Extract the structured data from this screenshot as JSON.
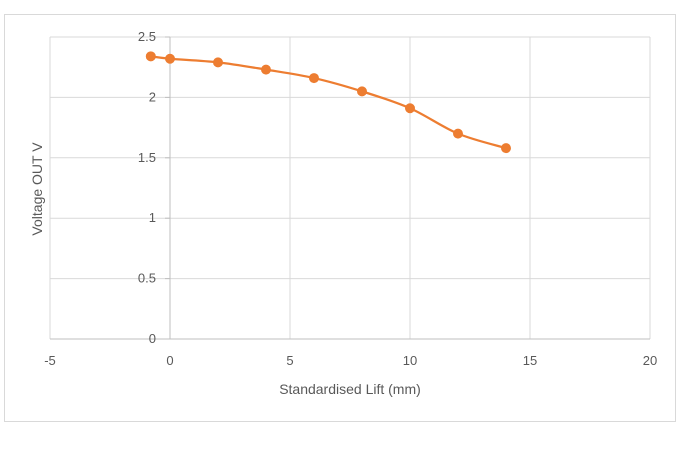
{
  "chart_data": {
    "type": "scatter",
    "title": "",
    "xlabel": "Standardised Lift (mm)",
    "ylabel": "Voltage OUT V",
    "xlim": [
      -5,
      20
    ],
    "ylim": [
      0,
      2.5
    ],
    "x_ticks": [
      "-5",
      "0",
      "5",
      "10",
      "15",
      "20"
    ],
    "y_ticks": [
      "0",
      "0.5",
      "1",
      "1.5",
      "2",
      "2.5"
    ],
    "grid": true,
    "legend": "none",
    "line_style": "smooth-with-markers",
    "color": "#ED7D31",
    "series": [
      {
        "x": [
          -0.8,
          0,
          2,
          4,
          6,
          8,
          10,
          12,
          14
        ],
        "y": [
          2.34,
          2.32,
          2.29,
          2.23,
          2.16,
          2.05,
          1.91,
          1.7,
          1.58
        ]
      }
    ]
  }
}
